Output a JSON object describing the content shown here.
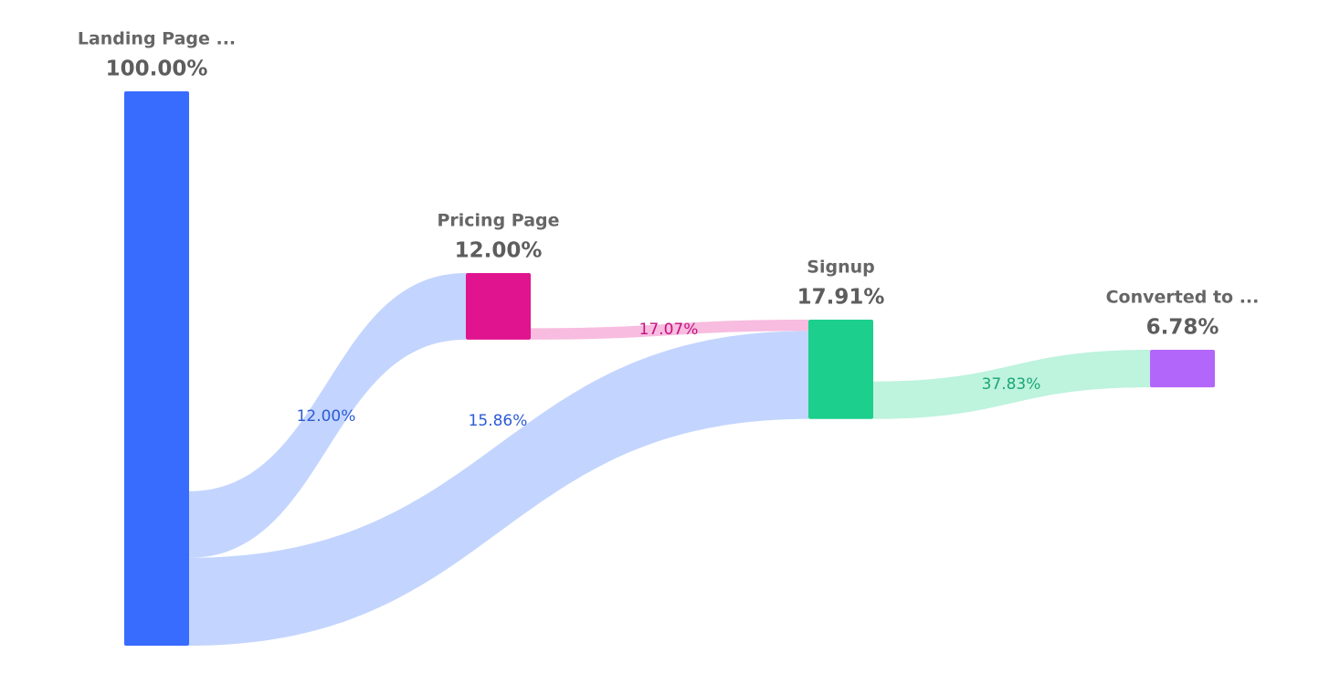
{
  "chart_data": {
    "type": "sankey",
    "nodes": [
      {
        "name": "Landing Page ...",
        "value": 100,
        "value_label": "100.00%",
        "color": "#386cff"
      },
      {
        "name": "Pricing Page",
        "value": 12,
        "value_label": "12.00%",
        "color": "#e0148f"
      },
      {
        "name": "Signup",
        "value": 17.91,
        "value_label": "17.91%",
        "color": "#1ccf8d"
      },
      {
        "name": "Converted to ...",
        "value": 6.78,
        "value_label": "6.78%",
        "color": "#b366fa"
      }
    ],
    "links": [
      {
        "source": "Landing Page ...",
        "target": "Pricing Page",
        "value": 12,
        "value_label": "12.00%",
        "color": "#c0d3fe",
        "label_color": "#2d5bd6"
      },
      {
        "source": "Pricing Page",
        "target": "Signup",
        "value": 17.07,
        "value_label": "17.07%",
        "color": "#f7b8dd",
        "label_color": "#c4127e"
      },
      {
        "source": "Landing Page ...",
        "target": "Signup",
        "value": 15.86,
        "value_label": "15.86%",
        "color": "#c0d3fe",
        "label_color": "#2d5bd6"
      },
      {
        "source": "Signup",
        "target": "Converted to ...",
        "value": 37.83,
        "value_label": "37.83%",
        "color": "#baf2dc",
        "label_color": "#19a874"
      }
    ]
  }
}
